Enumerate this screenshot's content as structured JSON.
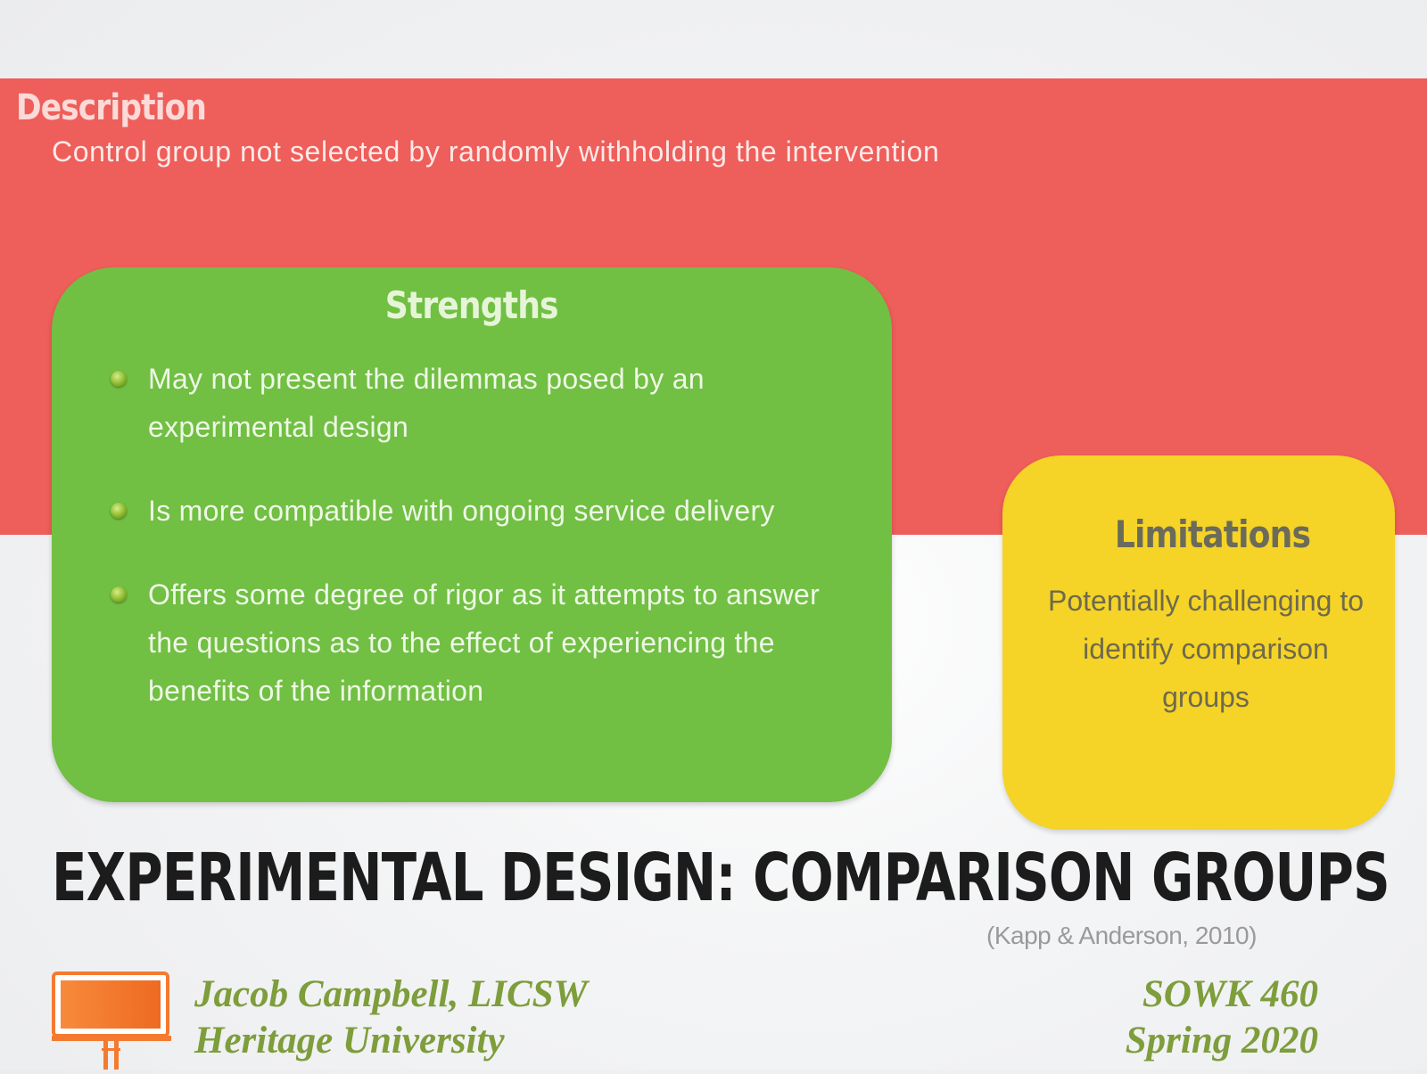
{
  "description": {
    "heading": "Description",
    "text": "Control group not selected by randomly withholding the intervention"
  },
  "strengths": {
    "title": "Strengths",
    "items": [
      "May not present the dilemmas posed by an experimental design",
      "Is more compatible with ongoing service delivery",
      "Offers some degree of rigor as it attempts to answer the questions as to the effect of experiencing the benefits of the information"
    ]
  },
  "limitations": {
    "title": "Limitations",
    "text": "Potentially challenging to identify comparison groups"
  },
  "slide": {
    "title": "EXPERIMENTAL DESIGN: COMPARISON GROUPS",
    "citation": "(Kapp & Anderson, 2010)"
  },
  "footer": {
    "author": "Jacob Campbell, LICSW",
    "institution": "Heritage University",
    "course": "SOWK 460",
    "term": "Spring 2020",
    "logo_icon": "billboard-icon"
  },
  "colors": {
    "description_band": "#ee5e5a",
    "strengths_box": "#71bf43",
    "limitations_box": "#f5d327",
    "footer_text": "#7e9d3b",
    "logo": "#f47a30"
  }
}
